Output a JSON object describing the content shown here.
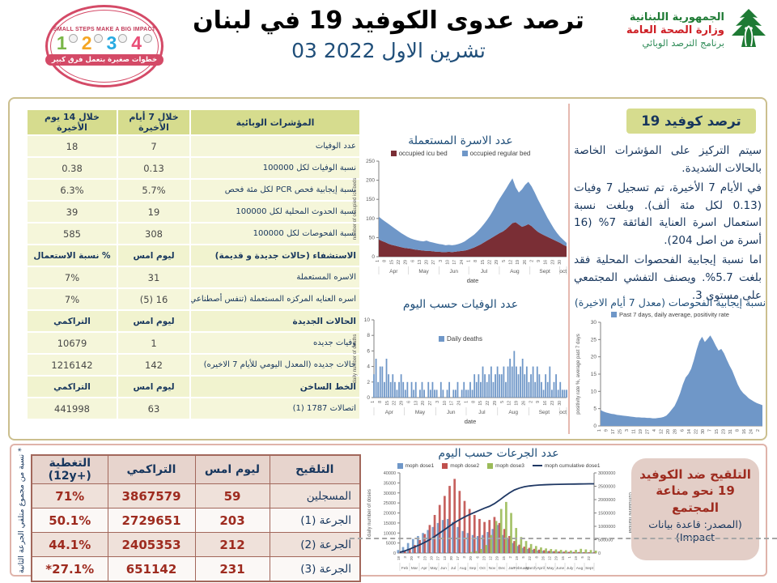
{
  "header": {
    "stamp": {
      "top_text": "SMALL STEPS MAKE A BIG IMPACT",
      "digits": [
        "1",
        "2",
        "3",
        "4"
      ],
      "digit_colors": [
        "#7AB648",
        "#F5A623",
        "#29ABE2",
        "#E94E77"
      ],
      "bottom_text": "خطوات صغيرة بتعمل فرق كبير"
    },
    "title": "ترصد عدوى الكوفيد 19 في لبنان",
    "date": "03 تشرين الاول 2022",
    "moph": {
      "line1": "الجمهورية اللبنانية",
      "line2": "وزارة الصحة العامة",
      "line3": "برنامج الترصد الوبائي"
    }
  },
  "epi_table": {
    "header": [
      "المؤشرات الوبائية",
      "خلال 7 أيام الأخيرة",
      "خلال 14 يوم الأخيرة"
    ],
    "rows": [
      {
        "kind": "data",
        "label": "عدد الوفيات",
        "c1": "7",
        "c2": "18"
      },
      {
        "kind": "data",
        "label": "نسبة الوفيات لكل 100000",
        "c1": "0.13",
        "c2": "0.38"
      },
      {
        "kind": "data",
        "label": "نسبة إيجابية فحص PCR لكل مئة فحص",
        "c1": "5.7%",
        "c2": "6.3%"
      },
      {
        "kind": "data",
        "label": "نسبة الحدوث المحلية لكل 100000",
        "c1": "19",
        "c2": "39"
      },
      {
        "kind": "data",
        "label": "نسبة الفحوصات لكل 100000",
        "c1": "308",
        "c2": "585"
      },
      {
        "kind": "section",
        "label": "الاستشفاء (حالات جديدة و قديمة)",
        "c1": "ليوم امس",
        "c2": "% نسبة الاستعمال"
      },
      {
        "kind": "data",
        "label": "الاسره المستعملة",
        "c1": "31",
        "c2": "7%"
      },
      {
        "kind": "data",
        "label": "اسره العنايه المركزه المستعملة (تنفس أصطناعي)",
        "c1": "16 (5)",
        "c2": "7%"
      },
      {
        "kind": "section",
        "label": "الحالات الجديدة",
        "c1": "ليوم امس",
        "c2": "التراكمي"
      },
      {
        "kind": "data",
        "label": "وفيات جديده",
        "c1": "1",
        "c2": "10679"
      },
      {
        "kind": "data",
        "label": "حالات جديده (المعدل اليومي للأيام 7 الاخيره)",
        "c1": "142",
        "c2": "1216142"
      },
      {
        "kind": "section",
        "label": "الخط الساخن",
        "c1": "ليوم امس",
        "c2": "التراكمي"
      },
      {
        "kind": "data",
        "label": "اتصالات 1787 (1)",
        "c1": "63",
        "c2": "441998"
      }
    ]
  },
  "summary": {
    "badge": "ترصد كوفيد 19",
    "paragraphs": [
      "سيتم التركيز على المؤشرات الخاصة بالحالات الشديدة.",
      "في الأيام 7 الأخيرة، تم تسجيل 7 وفيات (0.13 لكل مئة ألف). وبلغت نسبة استعمال اسرة العناية الفائقة 7% (16 أسرة من اصل 204).",
      "اما نسبة إيجابية الفحصوات المحلية فقد بلغت 5.7%. ويصنف التفشي المجتمعي على مستوى 3."
    ]
  },
  "vax_table": {
    "header": [
      "التلقيح",
      "ليوم امس",
      "التراكمي",
      "التغطية (+12y)"
    ],
    "rows": [
      {
        "label": "المسجلين",
        "c1": "59",
        "c2": "3867579",
        "c3": "71%"
      },
      {
        "label": "الجرعة (1)",
        "c1": "203",
        "c2": "2729651",
        "c3": "50.1%"
      },
      {
        "label": "الجرعة (2)",
        "c1": "212",
        "c2": "2405353",
        "c3": "44.1%"
      },
      {
        "label": "الجرعة (3)",
        "c1": "231",
        "c2": "651142",
        "c3": "27.1%*"
      }
    ],
    "footnote": "* نسبة من مجموع متلقي الجرعة الثانية"
  },
  "vax_box": {
    "title": "التلقيح ضد الكوفيد 19 نحو مناعة المجتمع",
    "source": "(المصدر: قاعدة بيانات Impact)"
  },
  "colors": {
    "title_blue": "#1F4E79",
    "navy": "#17365D",
    "table_green": "#D6DC8E",
    "vax_red": "#9E2B1F",
    "series_blue": "#6F97C8",
    "series_maroon": "#7A2E35",
    "series_red": "#C0504D",
    "series_green": "#9BBB59",
    "series_navy": "#1F3864"
  },
  "chart_data": [
    {
      "id": "beds",
      "type": "area",
      "stacked": true,
      "title": "عدد الاسرة المستعملة",
      "ylabel": "number of occupied icu beds",
      "xlabel": "date",
      "ylim": [
        0,
        250
      ],
      "yticks": [
        0,
        50,
        100,
        150,
        200,
        250
      ],
      "legend_position": "top",
      "series": [
        {
          "name": "occupied icu bed",
          "color": "#7A2E35",
          "values": [
            45,
            41,
            38,
            34,
            31,
            29,
            27,
            25,
            23,
            22,
            21,
            19,
            18,
            17,
            16,
            15,
            15,
            14,
            13,
            13,
            12,
            12,
            13,
            12,
            13,
            14,
            15,
            16,
            18,
            21,
            24,
            28,
            32,
            37,
            42,
            47,
            52,
            57,
            62,
            66,
            72,
            80,
            88,
            90,
            84,
            78,
            81,
            85,
            80,
            72,
            65,
            60,
            56,
            52,
            48,
            44,
            40,
            36,
            31,
            27
          ]
        },
        {
          "name": "occupied regular bed",
          "color": "#6F97C8",
          "values": [
            60,
            57,
            54,
            52,
            49,
            45,
            41,
            37,
            34,
            30,
            27,
            26,
            25,
            24,
            24,
            27,
            24,
            23,
            22,
            20,
            20,
            18,
            18,
            18,
            18,
            19,
            21,
            24,
            28,
            31,
            34,
            38,
            43,
            48,
            54,
            61,
            70,
            81,
            90,
            99,
            106,
            112,
            117,
            92,
            84,
            98,
            107,
            111,
            104,
            96,
            85,
            74,
            62,
            50,
            40,
            30,
            22,
            16,
            13,
            9
          ]
        }
      ],
      "xticks": [
        "1",
        "8",
        "15",
        "22",
        "29",
        "6",
        "13",
        "20",
        "27",
        "3",
        "10",
        "17",
        "24",
        "1",
        "8",
        "15",
        "22",
        "29",
        "5",
        "12",
        "19",
        "26",
        "2",
        "9",
        "16",
        "23",
        "30"
      ],
      "xtick_span": 0.97,
      "xmonths": [
        "Apr",
        "May",
        "Jun",
        "Jul",
        "Aug",
        "Sept",
        "oct"
      ],
      "xmonth_fracs": [
        0,
        0.158,
        0.321,
        0.479,
        0.642,
        0.805,
        0.963,
        1
      ]
    },
    {
      "id": "deaths",
      "type": "bar",
      "title": "عدد الوفيات حسب اليوم",
      "ylabel": "daily number of deaths",
      "xlabel": "date",
      "ylim": [
        0,
        10
      ],
      "yticks": [
        0,
        2,
        4,
        6,
        8,
        10
      ],
      "legend_position": "overlay",
      "series": [
        {
          "name": "Daily deaths",
          "color": "#6F97C8",
          "values": [
            3,
            5,
            2,
            4,
            4,
            2,
            5,
            3,
            2,
            3,
            2,
            1,
            2,
            3,
            2,
            1,
            2,
            0,
            2,
            1,
            2,
            0,
            1,
            2,
            1,
            0,
            2,
            1,
            2,
            1,
            1,
            0,
            2,
            1,
            0,
            1,
            2,
            0,
            1,
            1,
            2,
            0,
            1,
            2,
            1,
            1,
            2,
            1,
            3,
            2,
            3,
            2,
            4,
            3,
            2,
            3,
            4,
            2,
            3,
            4,
            3,
            3,
            4,
            2,
            4,
            5,
            4,
            6,
            4,
            3,
            4,
            5,
            3,
            4,
            2,
            3,
            4,
            2,
            4,
            3,
            2,
            1,
            3,
            2,
            4,
            1,
            2,
            3,
            1,
            2,
            1,
            1,
            1
          ]
        }
      ],
      "xticks": [
        "1",
        "8",
        "15",
        "22",
        "29",
        "6",
        "13",
        "20",
        "27",
        "3",
        "10",
        "17",
        "24",
        "1",
        "8",
        "15",
        "22",
        "29",
        "5",
        "12",
        "19",
        "26",
        "2",
        "9",
        "16",
        "23",
        "30"
      ],
      "xtick_span": 0.97,
      "xmonths": [
        "Apr",
        "May",
        "Jun",
        "Jul",
        "Aug",
        "Sept",
        "oct"
      ],
      "xmonth_fracs": [
        0,
        0.158,
        0.321,
        0.479,
        0.642,
        0.805,
        0.963,
        1
      ]
    },
    {
      "id": "positivity",
      "type": "area",
      "stacked": false,
      "title": "نسبة إيجابية الفحوصات (معدل 7 أيام الاخيرة)",
      "ylabel": "positivity rate %, average past 7 days",
      "xlabel": "",
      "ylim": [
        0,
        30
      ],
      "yticks": [
        0,
        5,
        10,
        15,
        20,
        25,
        30
      ],
      "legend_position": "top",
      "series": [
        {
          "name": "Past 7 days, daily average, positivity rate",
          "color": "#6F97C8",
          "values": [
            4.6,
            4.2,
            3.9,
            3.7,
            3.5,
            3.4,
            3.2,
            3.1,
            3.0,
            2.9,
            2.8,
            2.7,
            2.6,
            2.5,
            2.5,
            2.4,
            2.4,
            2.3,
            2.3,
            2.2,
            2.2,
            2.3,
            2.4,
            2.6,
            3.0,
            3.8,
            4.8,
            5.8,
            7.5,
            9.5,
            12.0,
            14.0,
            15.0,
            16.5,
            19.0,
            22.0,
            24.5,
            25.8,
            24.3,
            25.2,
            26.2,
            24.8,
            23.2,
            21.8,
            22.3,
            21.0,
            19.2,
            17.5,
            16.0,
            14.0,
            12.0,
            10.5,
            9.5,
            8.8,
            8.0,
            7.5,
            7.0,
            6.6,
            6.3,
            6.0
          ]
        }
      ],
      "xticks": [
        "1",
        "9",
        "17",
        "25",
        "3",
        "11",
        "19",
        "27",
        "4",
        "12",
        "20",
        "28",
        "6",
        "14",
        "22",
        "30",
        "7",
        "15",
        "23",
        "31",
        "8",
        "16",
        "24",
        "2"
      ],
      "xtick_span": 0.98,
      "xmonths": [],
      "xmonth_fracs": []
    },
    {
      "id": "doses",
      "type": "combo",
      "title": "عدد الجرعات حسب اليوم",
      "ylabel": "daily number of doses",
      "ylabel_right": "cumulative number",
      "ylim": [
        0,
        40000
      ],
      "yticks": [
        0,
        5000,
        10000,
        15000,
        20000,
        25000,
        30000,
        35000,
        40000
      ],
      "y2lim": [
        0,
        3000000
      ],
      "y2ticks": [
        0,
        500000,
        1000000,
        1500000,
        2000000,
        2500000,
        3000000
      ],
      "legend_position": "top",
      "series": [
        {
          "name": "moph dose1",
          "kind": "bar",
          "color": "#6F97C8",
          "values": [
            1500,
            3000,
            5000,
            7000,
            8500,
            10000,
            11500,
            13000,
            15000,
            16500,
            17000,
            15500,
            13000,
            11000,
            10000,
            9000,
            8500,
            9000,
            10500,
            12000,
            14000,
            9000,
            7000,
            5000,
            3500,
            2500,
            2000,
            1600,
            1300,
            1100,
            900,
            800,
            700,
            600,
            550,
            500,
            450,
            400,
            350,
            300
          ]
        },
        {
          "name": "moph dose2",
          "kind": "bar",
          "color": "#C0504D",
          "values": [
            200,
            1000,
            2200,
            4000,
            6500,
            9500,
            14000,
            19000,
            24000,
            28500,
            33500,
            37000,
            31000,
            26000,
            22000,
            19000,
            17000,
            15500,
            16500,
            18000,
            15000,
            12000,
            8500,
            6000,
            4200,
            3200,
            2600,
            2100,
            1700,
            1400,
            1100,
            950,
            800,
            700,
            600,
            550,
            500,
            450,
            400,
            350
          ]
        },
        {
          "name": "moph dose3",
          "kind": "bar",
          "color": "#9BBB59",
          "values": [
            0,
            0,
            0,
            0,
            0,
            0,
            0,
            0,
            0,
            0,
            0,
            0,
            0,
            0,
            500,
            1000,
            2000,
            4000,
            9000,
            16000,
            22000,
            25500,
            20000,
            12500,
            8000,
            6000,
            4500,
            3500,
            2800,
            2300,
            2000,
            1800,
            1600,
            1400,
            1300,
            1600,
            2100,
            1800,
            1500,
            1200
          ]
        },
        {
          "name": "moph cumulative dose1",
          "kind": "line",
          "axis": "right",
          "color": "#1F3864",
          "values": [
            30000,
            80000,
            150000,
            230000,
            310000,
            400000,
            500000,
            620000,
            750000,
            880000,
            1010000,
            1140000,
            1250000,
            1350000,
            1440000,
            1520000,
            1600000,
            1680000,
            1750000,
            1850000,
            1980000,
            2120000,
            2250000,
            2360000,
            2430000,
            2480000,
            2510000,
            2530000,
            2545000,
            2555000,
            2562000,
            2568000,
            2572000,
            2576000,
            2579000,
            2582000,
            2585000,
            2588000,
            2590000,
            2592000
          ]
        }
      ],
      "xticks": [
        "18",
        "3",
        "20",
        "4",
        "23",
        "10",
        "27",
        "13",
        "30",
        "17",
        "3",
        "20",
        "6",
        "23",
        "12",
        "29",
        "15",
        "2",
        "19",
        "5",
        "22",
        "8",
        "26",
        "12",
        "29",
        "15",
        "1",
        "19",
        "5",
        "22"
      ],
      "xtick_span": 0.98,
      "xmonths": [
        "Feb",
        "Mar",
        "Apr",
        "May",
        "Jun",
        "Jul",
        "Aug",
        "Sep",
        "Oct",
        "Nov",
        "Dec",
        "Jan",
        "February",
        "March",
        "April",
        "May",
        "June",
        "July",
        "Aug",
        "Sept"
      ],
      "xmonth_fracs": []
    }
  ]
}
